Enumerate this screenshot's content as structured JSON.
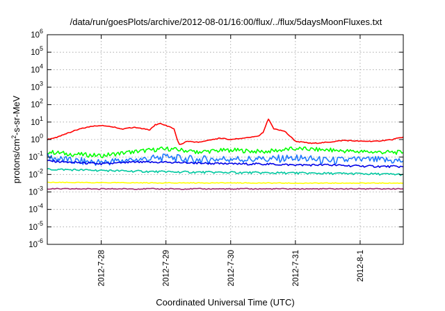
{
  "chart_data": {
    "type": "line",
    "title": "/data/run/goesPlots/archive/2012-08-01/16:00/flux/../flux/5daysMoonFluxes.txt",
    "xlabel": "Coordinated Universal Time (UTC)",
    "ylabel": {
      "prefix": "protons/cm",
      "sup": "2",
      "suffix": "-s-sr-MeV"
    },
    "y_scale": "log",
    "ylim": [
      1e-06,
      1000000.0
    ],
    "xlim": [
      "2012-07-27T04:00",
      "2012-08-01T16:00"
    ],
    "grid": true,
    "x_ticks": [
      {
        "t": "2012-07-28T00:00",
        "label": "2012-7-28"
      },
      {
        "t": "2012-07-29T00:00",
        "label": "2012-7-29"
      },
      {
        "t": "2012-07-30T00:00",
        "label": "2012-7-30"
      },
      {
        "t": "2012-07-31T00:00",
        "label": "2012-7-31"
      },
      {
        "t": "2012-08-01T00:00",
        "label": "2012-8-1"
      }
    ],
    "y_ticks": [
      {
        "value": 1e-06,
        "base": "10",
        "exp": "-6"
      },
      {
        "value": 1e-05,
        "base": "10",
        "exp": "-5"
      },
      {
        "value": 0.0001,
        "base": "10",
        "exp": "-4"
      },
      {
        "value": 0.001,
        "base": "10",
        "exp": "-3"
      },
      {
        "value": 0.01,
        "base": "10",
        "exp": "-2"
      },
      {
        "value": 0.1,
        "base": "10",
        "exp": "-1"
      },
      {
        "value": 1,
        "base": "10",
        "exp": "0"
      },
      {
        "value": 10,
        "base": "10",
        "exp": "1"
      },
      {
        "value": 100,
        "base": "10",
        "exp": "2"
      },
      {
        "value": 1000.0,
        "base": "10",
        "exp": "3"
      },
      {
        "value": 10000.0,
        "base": "10",
        "exp": "4"
      },
      {
        "value": 100000.0,
        "base": "10",
        "exp": "5"
      },
      {
        "value": 1000000.0,
        "base": "10",
        "exp": "6"
      }
    ],
    "series": [
      {
        "color": "#ff0000",
        "points": [
          [
            "2012-07-27T04:00",
            1.0
          ],
          [
            "2012-07-27T08:00",
            1.4
          ],
          [
            "2012-07-27T12:00",
            2.5
          ],
          [
            "2012-07-27T16:00",
            4.0
          ],
          [
            "2012-07-27T20:00",
            5.5
          ],
          [
            "2012-07-28T00:00",
            6.5
          ],
          [
            "2012-07-28T04:00",
            5.5
          ],
          [
            "2012-07-28T08:00",
            4.0
          ],
          [
            "2012-07-28T12:00",
            5.0
          ],
          [
            "2012-07-28T16:00",
            4.0
          ],
          [
            "2012-07-28T18:00",
            3.5
          ],
          [
            "2012-07-28T20:00",
            7.0
          ],
          [
            "2012-07-28T22:00",
            8.0
          ],
          [
            "2012-07-29T00:00",
            6.5
          ],
          [
            "2012-07-29T03:00",
            4.0
          ],
          [
            "2012-07-29T04:00",
            1.2
          ],
          [
            "2012-07-29T05:00",
            0.5
          ],
          [
            "2012-07-29T08:00",
            0.8
          ],
          [
            "2012-07-29T12:00",
            0.7
          ],
          [
            "2012-07-29T16:00",
            0.9
          ],
          [
            "2012-07-29T20:00",
            1.2
          ],
          [
            "2012-07-30T00:00",
            1.0
          ],
          [
            "2012-07-30T06:00",
            1.3
          ],
          [
            "2012-07-30T10:00",
            1.5
          ],
          [
            "2012-07-30T12:00",
            2.5
          ],
          [
            "2012-07-30T14:00",
            15.0
          ],
          [
            "2012-07-30T16:00",
            4.0
          ],
          [
            "2012-07-30T20:00",
            3.0
          ],
          [
            "2012-07-31T00:00",
            0.8
          ],
          [
            "2012-07-31T06:00",
            0.6
          ],
          [
            "2012-07-31T12:00",
            0.7
          ],
          [
            "2012-07-31T18:00",
            0.9
          ],
          [
            "2012-08-01T00:00",
            0.8
          ],
          [
            "2012-08-01T06:00",
            0.8
          ],
          [
            "2012-08-01T12:00",
            1.0
          ],
          [
            "2012-08-01T16:00",
            1.4
          ]
        ]
      },
      {
        "color": "#00ff00",
        "points": [
          [
            "2012-07-27T04:00",
            0.2
          ],
          [
            "2012-07-27T12:00",
            0.15
          ],
          [
            "2012-07-28T00:00",
            0.12
          ],
          [
            "2012-07-28T12:00",
            0.2
          ],
          [
            "2012-07-29T00:00",
            0.3
          ],
          [
            "2012-07-29T12:00",
            0.2
          ],
          [
            "2012-07-30T00:00",
            0.25
          ],
          [
            "2012-07-30T12:00",
            0.2
          ],
          [
            "2012-07-31T00:00",
            0.3
          ],
          [
            "2012-07-31T12:00",
            0.25
          ],
          [
            "2012-08-01T00:00",
            0.2
          ],
          [
            "2012-08-01T16:00",
            0.18
          ]
        ]
      },
      {
        "color": "#1e78ff",
        "points": [
          [
            "2012-07-27T04:00",
            0.1
          ],
          [
            "2012-07-27T12:00",
            0.06
          ],
          [
            "2012-07-28T00:00",
            0.05
          ],
          [
            "2012-07-28T12:00",
            0.07
          ],
          [
            "2012-07-29T00:00",
            0.09
          ],
          [
            "2012-07-29T12:00",
            0.07
          ],
          [
            "2012-07-30T00:00",
            0.08
          ],
          [
            "2012-07-30T12:00",
            0.07
          ],
          [
            "2012-07-31T00:00",
            0.09
          ],
          [
            "2012-07-31T12:00",
            0.06
          ],
          [
            "2012-08-01T00:00",
            0.07
          ],
          [
            "2012-08-01T16:00",
            0.06
          ]
        ]
      },
      {
        "color": "#0000e6",
        "points": [
          [
            "2012-07-27T04:00",
            0.06
          ],
          [
            "2012-07-27T12:00",
            0.05
          ],
          [
            "2012-07-28T00:00",
            0.04
          ],
          [
            "2012-07-28T12:00",
            0.05
          ],
          [
            "2012-07-29T00:00",
            0.05
          ],
          [
            "2012-07-29T12:00",
            0.045
          ],
          [
            "2012-07-30T00:00",
            0.04
          ],
          [
            "2012-07-30T12:00",
            0.04
          ],
          [
            "2012-07-31T00:00",
            0.035
          ],
          [
            "2012-07-31T12:00",
            0.035
          ],
          [
            "2012-08-01T00:00",
            0.03
          ],
          [
            "2012-08-01T16:00",
            0.028
          ]
        ]
      },
      {
        "color": "#00c8a0",
        "points": [
          [
            "2012-07-27T04:00",
            0.02
          ],
          [
            "2012-07-28T00:00",
            0.017
          ],
          [
            "2012-07-29T00:00",
            0.014
          ],
          [
            "2012-07-30T00:00",
            0.013
          ],
          [
            "2012-07-31T00:00",
            0.012
          ],
          [
            "2012-08-01T00:00",
            0.011
          ],
          [
            "2012-08-01T16:00",
            0.01
          ]
        ]
      },
      {
        "color": "#ffff00",
        "points": [
          [
            "2012-07-27T04:00",
            0.0035
          ],
          [
            "2012-07-28T00:00",
            0.0034
          ],
          [
            "2012-07-29T00:00",
            0.0033
          ],
          [
            "2012-07-30T00:00",
            0.0033
          ],
          [
            "2012-07-31T00:00",
            0.0032
          ],
          [
            "2012-08-01T00:00",
            0.0032
          ],
          [
            "2012-08-01T16:00",
            0.0032
          ]
        ]
      },
      {
        "color": "#a0286e",
        "points": [
          [
            "2012-07-27T04:00",
            0.0015
          ],
          [
            "2012-07-28T00:00",
            0.0015
          ],
          [
            "2012-07-29T00:00",
            0.0015
          ],
          [
            "2012-07-30T00:00",
            0.0015
          ],
          [
            "2012-07-31T00:00",
            0.0015
          ],
          [
            "2012-08-01T00:00",
            0.0015
          ],
          [
            "2012-08-01T16:00",
            0.0015
          ]
        ]
      }
    ]
  }
}
